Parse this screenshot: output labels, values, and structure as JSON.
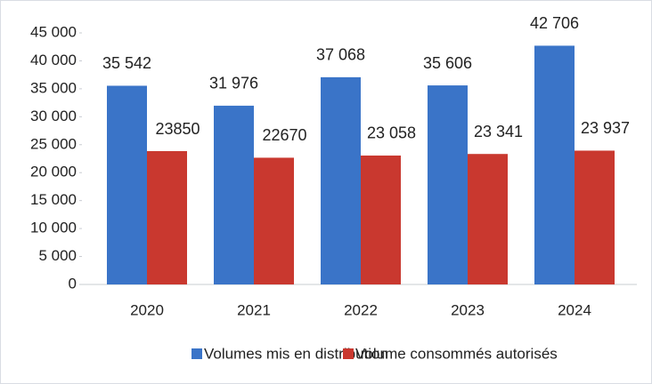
{
  "chart_data": {
    "type": "bar",
    "categories": [
      "2020",
      "2021",
      "2022",
      "2023",
      "2024"
    ],
    "series": [
      {
        "name": "Volumes mis en distribution",
        "color": "#3a74c8",
        "values": [
          35542,
          31976,
          37068,
          35606,
          42706
        ],
        "value_labels": [
          "35 542",
          "31 976",
          "37 068",
          "35 606",
          "42 706"
        ]
      },
      {
        "name": "Volume consommés autorisés",
        "color": "#c9382f",
        "values": [
          23850,
          22670,
          23058,
          23341,
          23937
        ],
        "value_labels": [
          "23850",
          "22670",
          "23 058",
          "23 341",
          "23 937"
        ]
      }
    ],
    "ylim": [
      0,
      45000
    ],
    "yticks": [
      0,
      {
        "value": 5000,
        "label": "5 000"
      },
      {
        "value": 10000,
        "label": "10 000"
      },
      {
        "value": 15000,
        "label": "15 000"
      },
      {
        "value": 20000,
        "label": "20 000"
      },
      {
        "value": 25000,
        "label": "25 000"
      },
      {
        "value": 30000,
        "label": "30 000"
      },
      {
        "value": 35000,
        "label": "35 000"
      },
      {
        "value": 40000,
        "label": "40 000"
      },
      {
        "value": 45000,
        "label": "45 000"
      }
    ],
    "grid": false,
    "legend": "bottom"
  }
}
